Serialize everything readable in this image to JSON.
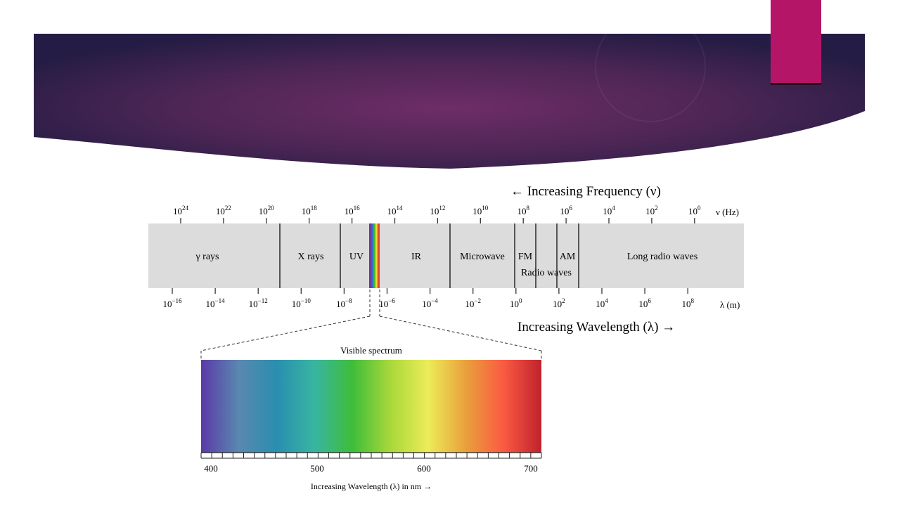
{
  "slide": {
    "banner_colors": {
      "edge": "#241c44",
      "center": "#6e2d66",
      "accent": "#b51567"
    }
  },
  "spectrum": {
    "frequency_arrow_label": "← Increasing Frequency (ν)",
    "frequency_unit": "ν (Hz)",
    "frequency_ticks": [
      {
        "base": "10",
        "exp": "24"
      },
      {
        "base": "10",
        "exp": "22"
      },
      {
        "base": "10",
        "exp": "20"
      },
      {
        "base": "10",
        "exp": "18"
      },
      {
        "base": "10",
        "exp": "16"
      },
      {
        "base": "10",
        "exp": "14"
      },
      {
        "base": "10",
        "exp": "12"
      },
      {
        "base": "10",
        "exp": "10"
      },
      {
        "base": "10",
        "exp": "8"
      },
      {
        "base": "10",
        "exp": "6"
      },
      {
        "base": "10",
        "exp": "4"
      },
      {
        "base": "10",
        "exp": "2"
      },
      {
        "base": "10",
        "exp": "0"
      }
    ],
    "bands": {
      "gamma": "γ rays",
      "xray": "X rays",
      "uv": "UV",
      "ir": "IR",
      "microwave": "Microwave",
      "fm": "FM",
      "am": "AM",
      "radio": "Radio waves",
      "long_radio": "Long radio waves"
    },
    "wavelength_ticks": [
      {
        "base": "10",
        "exp": "−16"
      },
      {
        "base": "10",
        "exp": "−14"
      },
      {
        "base": "10",
        "exp": "−12"
      },
      {
        "base": "10",
        "exp": "−10"
      },
      {
        "base": "10",
        "exp": "−8"
      },
      {
        "base": "10",
        "exp": "−6"
      },
      {
        "base": "10",
        "exp": "−4"
      },
      {
        "base": "10",
        "exp": "−2"
      },
      {
        "base": "10",
        "exp": "0"
      },
      {
        "base": "10",
        "exp": "2"
      },
      {
        "base": "10",
        "exp": "4"
      },
      {
        "base": "10",
        "exp": "6"
      },
      {
        "base": "10",
        "exp": "8"
      }
    ],
    "wavelength_unit": "λ (m)",
    "wavelength_arrow_label": "Increasing Wavelength (λ) →",
    "band_fill": "#dcdcdc"
  },
  "visible": {
    "title": "Visible spectrum",
    "tick_labels": [
      "400",
      "500",
      "600",
      "700"
    ],
    "axis_label": "Increasing Wavelength (λ) in nm →",
    "gradient_colors": [
      "#5a3aa8",
      "#5a88b0",
      "#2a8eb0",
      "#38b5a0",
      "#3ebd3a",
      "#a8d83a",
      "#ecec58",
      "#e9a03c",
      "#fa5a42",
      "#c0222c"
    ]
  }
}
